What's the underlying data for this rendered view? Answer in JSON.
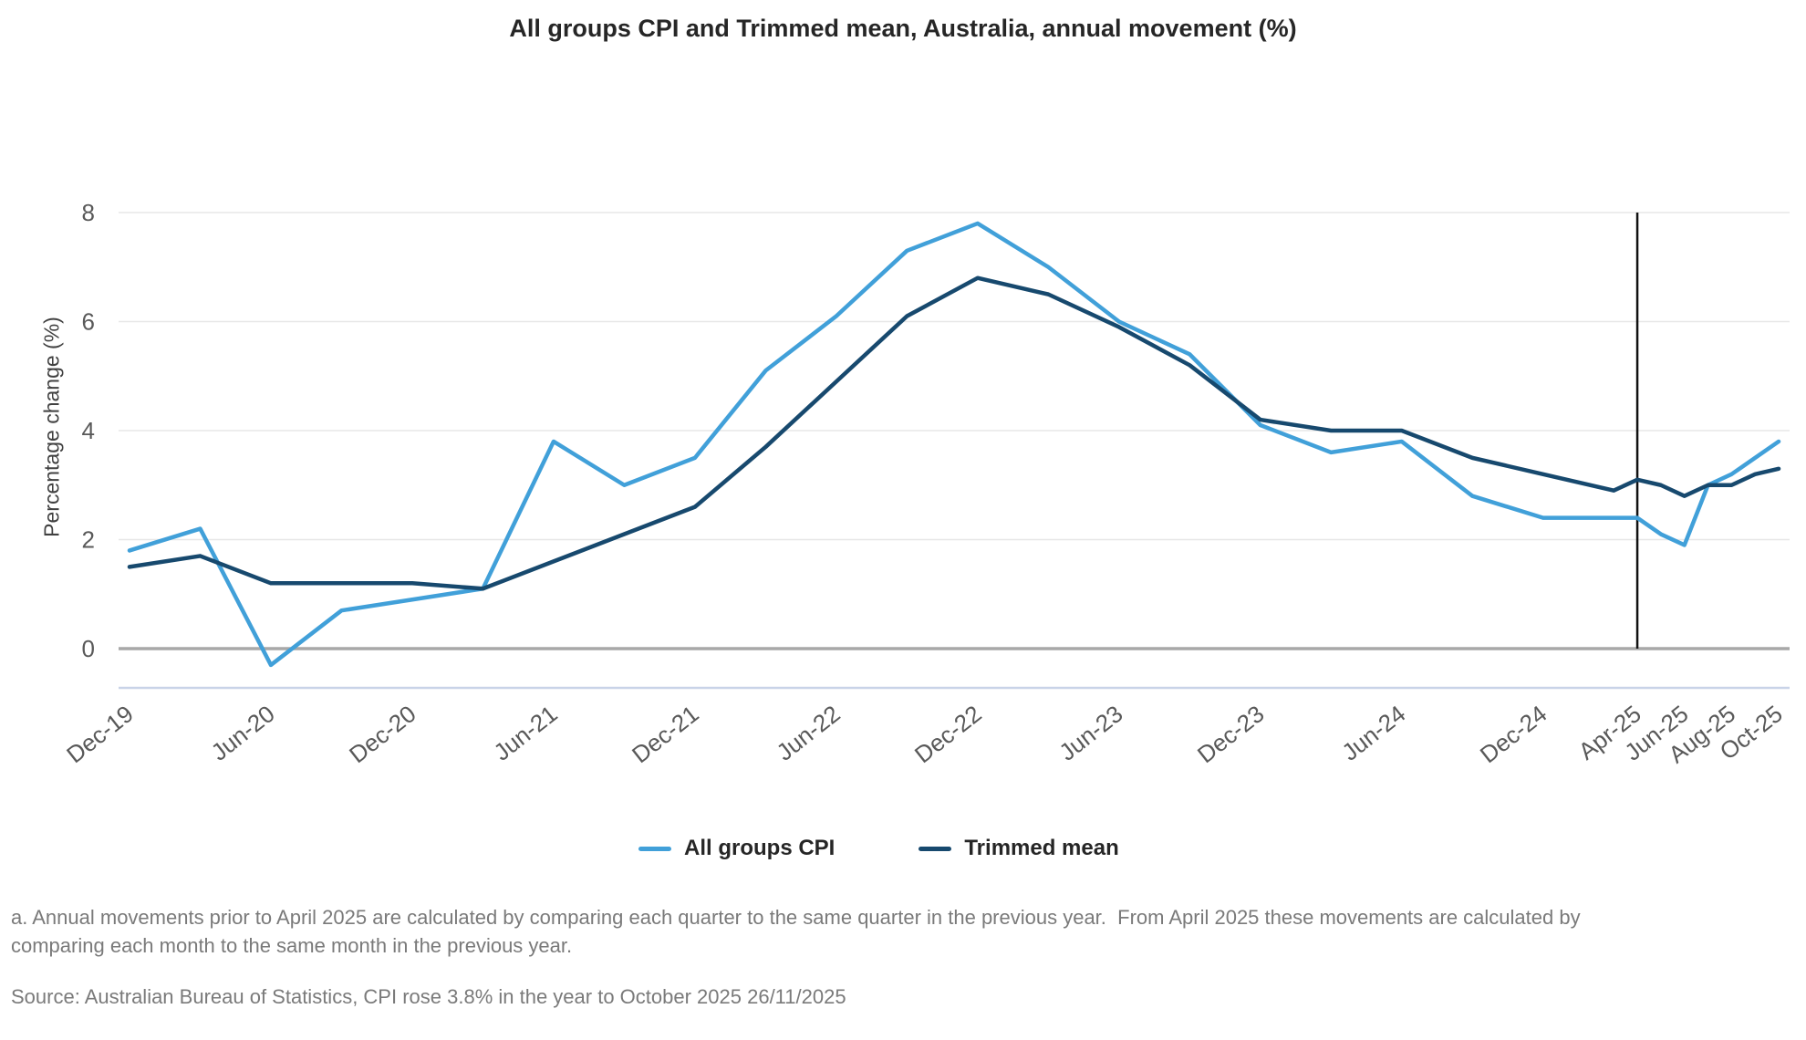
{
  "title": "All groups CPI and Trimmed mean, Australia, annual movement (%)",
  "colors": {
    "cpi_line": "#41a0d9",
    "trimmed_mean_line": "#17496e",
    "zero_line": "#a8a8a8",
    "gridline": "#e7e7e7",
    "axis_line": "#c9d3e8",
    "marker_line": "#111111",
    "axis_text": "#595959",
    "title_text": "#262626",
    "footnote_text": "#7a7a7a"
  },
  "chart_data": {
    "type": "line",
    "title": "All groups CPI and Trimmed mean, Australia, annual movement (%)",
    "xlabel": "",
    "ylabel": "Percentage change (%)",
    "x_unit": "months since Dec-2019; quarterly points to Mar-25, monthly from Apr-25",
    "x": [
      0,
      3,
      6,
      9,
      12,
      15,
      18,
      21,
      24,
      27,
      30,
      33,
      36,
      39,
      42,
      45,
      48,
      51,
      54,
      57,
      60,
      63,
      64,
      65,
      66,
      67,
      68,
      69,
      70
    ],
    "point_labels": [
      "Dec-19",
      "Mar-20",
      "Jun-20",
      "Sep-20",
      "Dec-20",
      "Mar-21",
      "Jun-21",
      "Sep-21",
      "Dec-21",
      "Mar-22",
      "Jun-22",
      "Sep-22",
      "Dec-22",
      "Mar-23",
      "Jun-23",
      "Sep-23",
      "Dec-23",
      "Mar-24",
      "Jun-24",
      "Sep-24",
      "Dec-24",
      "Mar-25",
      "Apr-25",
      "May-25",
      "Jun-25",
      "Jul-25",
      "Aug-25",
      "Sep-25",
      "Oct-25"
    ],
    "series": [
      {
        "name": "All groups CPI",
        "color": "#41a0d9",
        "values": [
          1.8,
          2.2,
          -0.3,
          0.7,
          0.9,
          1.1,
          3.8,
          3.0,
          3.5,
          5.1,
          6.1,
          7.3,
          7.8,
          7.0,
          6.0,
          5.4,
          4.1,
          3.6,
          3.8,
          2.8,
          2.4,
          2.4,
          2.4,
          2.1,
          1.9,
          3.0,
          3.2,
          3.5,
          3.8
        ]
      },
      {
        "name": "Trimmed mean",
        "color": "#17496e",
        "values": [
          1.5,
          1.7,
          1.2,
          1.2,
          1.2,
          1.1,
          1.6,
          2.1,
          2.6,
          3.7,
          4.9,
          6.1,
          6.8,
          6.5,
          5.9,
          5.2,
          4.2,
          4.0,
          4.0,
          3.5,
          3.2,
          2.9,
          3.1,
          3.0,
          2.8,
          3.0,
          3.0,
          3.2,
          3.3
        ]
      }
    ],
    "y_ticks": [
      0,
      2,
      4,
      6,
      8
    ],
    "ylim": [
      -0.7,
      8
    ],
    "grid": "horizontal",
    "legend_position": "bottom",
    "x_tick_labels": [
      {
        "label": "Dec-19",
        "m": 0
      },
      {
        "label": "Jun-20",
        "m": 6
      },
      {
        "label": "Dec-20",
        "m": 12
      },
      {
        "label": "Jun-21",
        "m": 18
      },
      {
        "label": "Dec-21",
        "m": 24
      },
      {
        "label": "Jun-22",
        "m": 30
      },
      {
        "label": "Dec-22",
        "m": 36
      },
      {
        "label": "Jun-23",
        "m": 42
      },
      {
        "label": "Dec-23",
        "m": 48
      },
      {
        "label": "Jun-24",
        "m": 54
      },
      {
        "label": "Dec-24",
        "m": 60
      },
      {
        "label": "Apr-25",
        "m": 64
      },
      {
        "label": "Jun-25",
        "m": 66
      },
      {
        "label": "Aug-25",
        "m": 68
      },
      {
        "label": "Oct-25",
        "m": 70
      }
    ],
    "marker_line": {
      "m": 64,
      "at_label": "Apr-25",
      "from": 0,
      "to": 8
    }
  },
  "notes": {
    "footnote": "a. Annual movements prior to April 2025 are calculated by comparing each quarter to the same quarter in the previous year.  From April 2025 these movements are calculated by comparing each month to the same month in the previous year.",
    "source": "Source: Australian Bureau of Statistics, CPI rose 3.8% in the year to October 2025 26/11/2025"
  }
}
